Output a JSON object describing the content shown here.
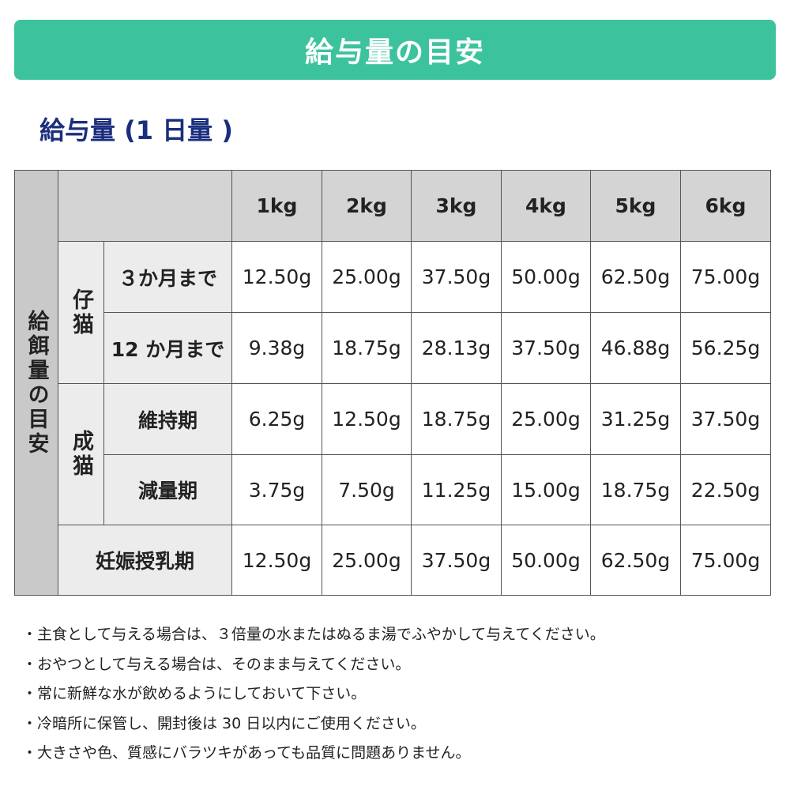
{
  "header": {
    "title": "給与量の目安"
  },
  "subtitle": "給与量 (1 日量 )",
  "table": {
    "side_label": "給餌量の目安",
    "columns": [
      "1kg",
      "2kg",
      "3kg",
      "4kg",
      "5kg",
      "6kg"
    ],
    "groups": [
      {
        "label": "仔猫",
        "rows": [
          {
            "label": "３か月まで",
            "values": [
              "12.50g",
              "25.00g",
              "37.50g",
              "50.00g",
              "62.50g",
              "75.00g"
            ]
          },
          {
            "label": "12 か月まで",
            "values": [
              "9.38g",
              "18.75g",
              "28.13g",
              "37.50g",
              "46.88g",
              "56.25g"
            ]
          }
        ]
      },
      {
        "label": "成猫",
        "rows": [
          {
            "label": "維持期",
            "values": [
              "6.25g",
              "12.50g",
              "18.75g",
              "25.00g",
              "31.25g",
              "37.50g"
            ]
          },
          {
            "label": "減量期",
            "values": [
              "3.75g",
              "7.50g",
              "11.25g",
              "15.00g",
              "18.75g",
              "22.50g"
            ]
          }
        ]
      }
    ],
    "last_row": {
      "label": "妊娠授乳期",
      "values": [
        "12.50g",
        "25.00g",
        "37.50g",
        "50.00g",
        "62.50g",
        "75.00g"
      ]
    }
  },
  "notes": [
    "・主食として与える場合は、３倍量の水またはぬるま湯でふやかして与えてください。",
    "・おやつとして与える場合は、そのまま与えてください。",
    "・常に新鮮な水が飲めるようにしておいて下さい。",
    "・冷暗所に保管し、開封後は 30 日以内にご使用ください。",
    "・大きさや色、質感にバラツキがあっても品質に問題ありません。"
  ]
}
